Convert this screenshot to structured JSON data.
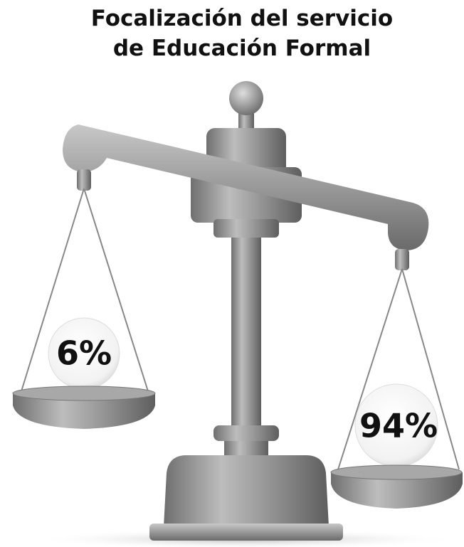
{
  "title": [
    "Focalización del servicio",
    "de Educación Formal"
  ],
  "pans": [
    {
      "label": "6%"
    },
    {
      "label": "94%"
    }
  ]
}
